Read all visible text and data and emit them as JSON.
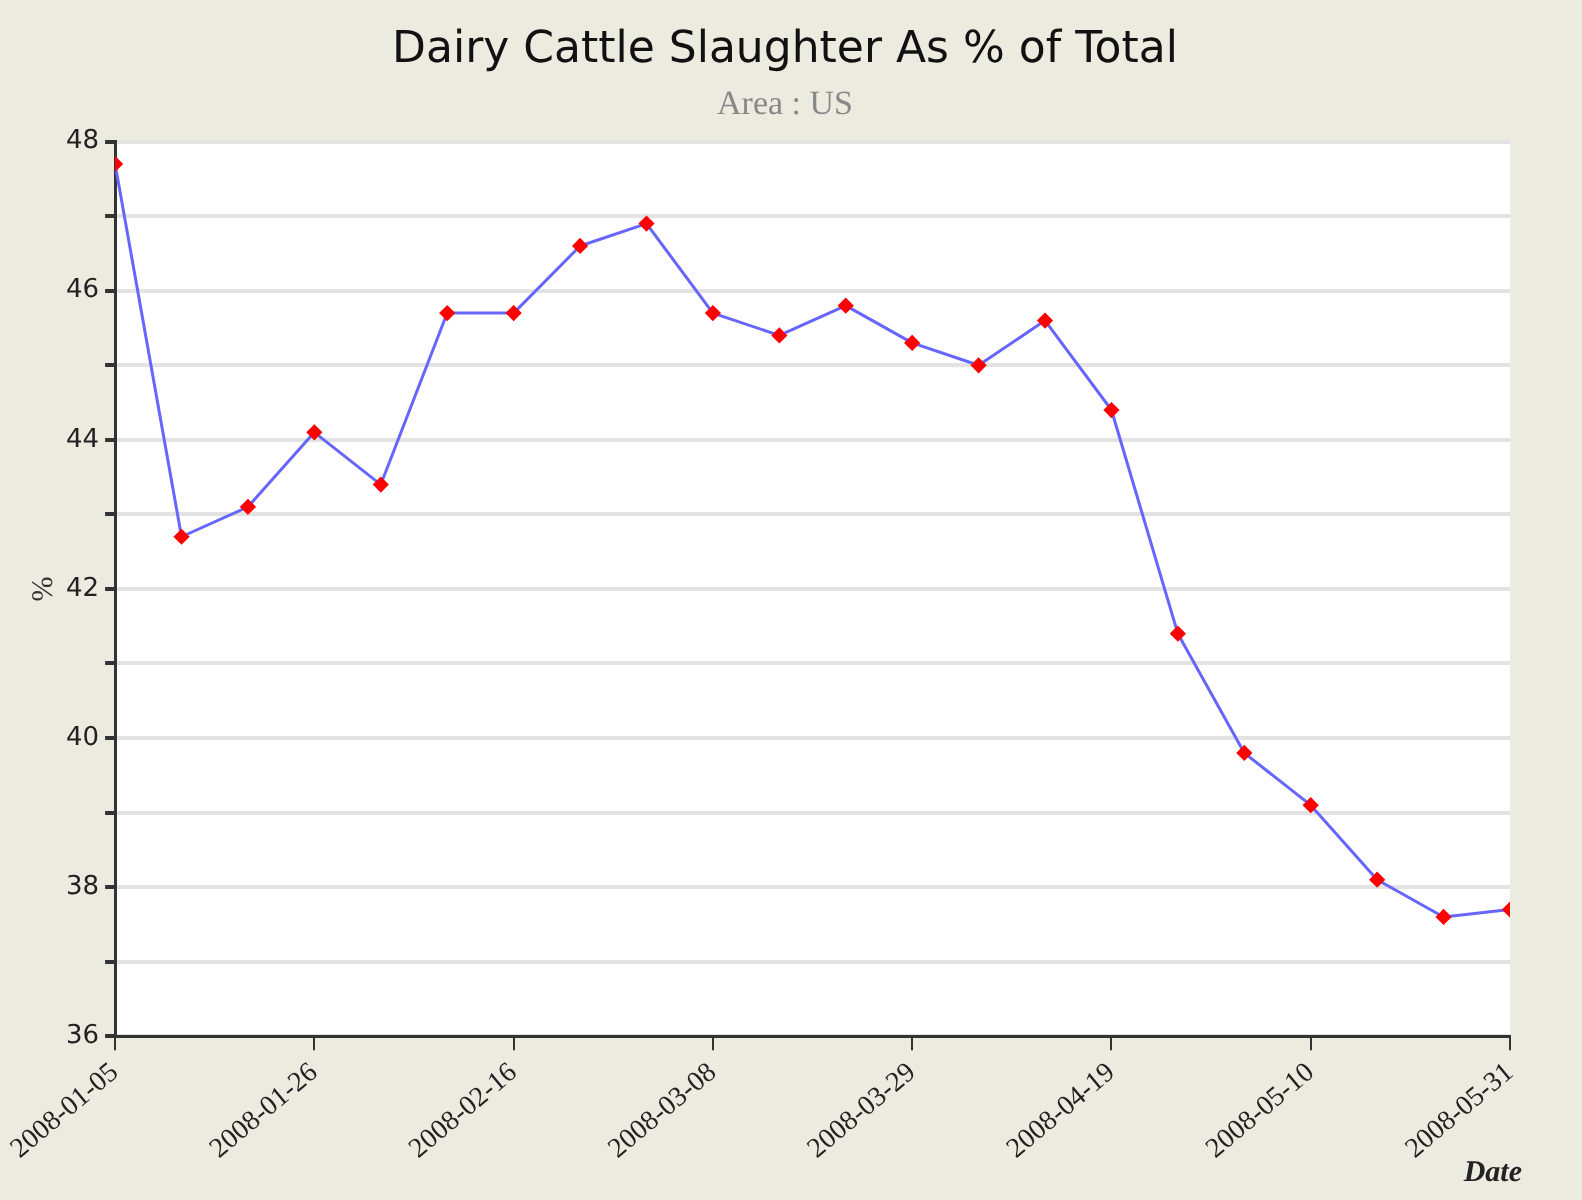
{
  "chart_data": {
    "type": "line",
    "title": "Dairy Cattle Slaughter As % of Total",
    "subtitle": "Area : US",
    "xlabel": "Date",
    "ylabel": "%",
    "x": [
      "2008-01-05",
      "2008-01-12",
      "2008-01-19",
      "2008-01-26",
      "2008-02-02",
      "2008-02-09",
      "2008-02-16",
      "2008-02-23",
      "2008-03-01",
      "2008-03-08",
      "2008-03-15",
      "2008-03-22",
      "2008-03-29",
      "2008-04-05",
      "2008-04-12",
      "2008-04-19",
      "2008-04-26",
      "2008-05-03",
      "2008-05-10",
      "2008-05-17",
      "2008-05-24",
      "2008-05-31"
    ],
    "series": [
      {
        "color": "#6666ff",
        "values": [
          47.7,
          42.7,
          43.1,
          44.1,
          43.4,
          45.7,
          45.7,
          46.6,
          46.9,
          45.7,
          45.4,
          45.8,
          45.3,
          45.0,
          45.6,
          44.4,
          41.4,
          39.8,
          39.1,
          38.1,
          37.6,
          37.7
        ]
      }
    ],
    "xlim": [
      "2008-01-05",
      "2008-05-31"
    ],
    "xticks": [
      "2008-01-05",
      "2008-01-26",
      "2008-02-16",
      "2008-03-08",
      "2008-03-29",
      "2008-04-19",
      "2008-05-10",
      "2008-05-31"
    ],
    "ylim": [
      36,
      48
    ],
    "yticks": [
      36,
      {
        "value": 37,
        "label": null
      },
      38,
      {
        "value": 39,
        "label": null
      },
      40,
      {
        "value": 41,
        "label": null
      },
      42,
      {
        "value": 43,
        "label": null
      },
      44,
      {
        "value": 45,
        "label": null
      },
      46,
      {
        "value": 47,
        "label": null
      },
      48
    ],
    "grid": "y",
    "legend": false,
    "marker": "diamond",
    "line_style": "solid"
  }
}
